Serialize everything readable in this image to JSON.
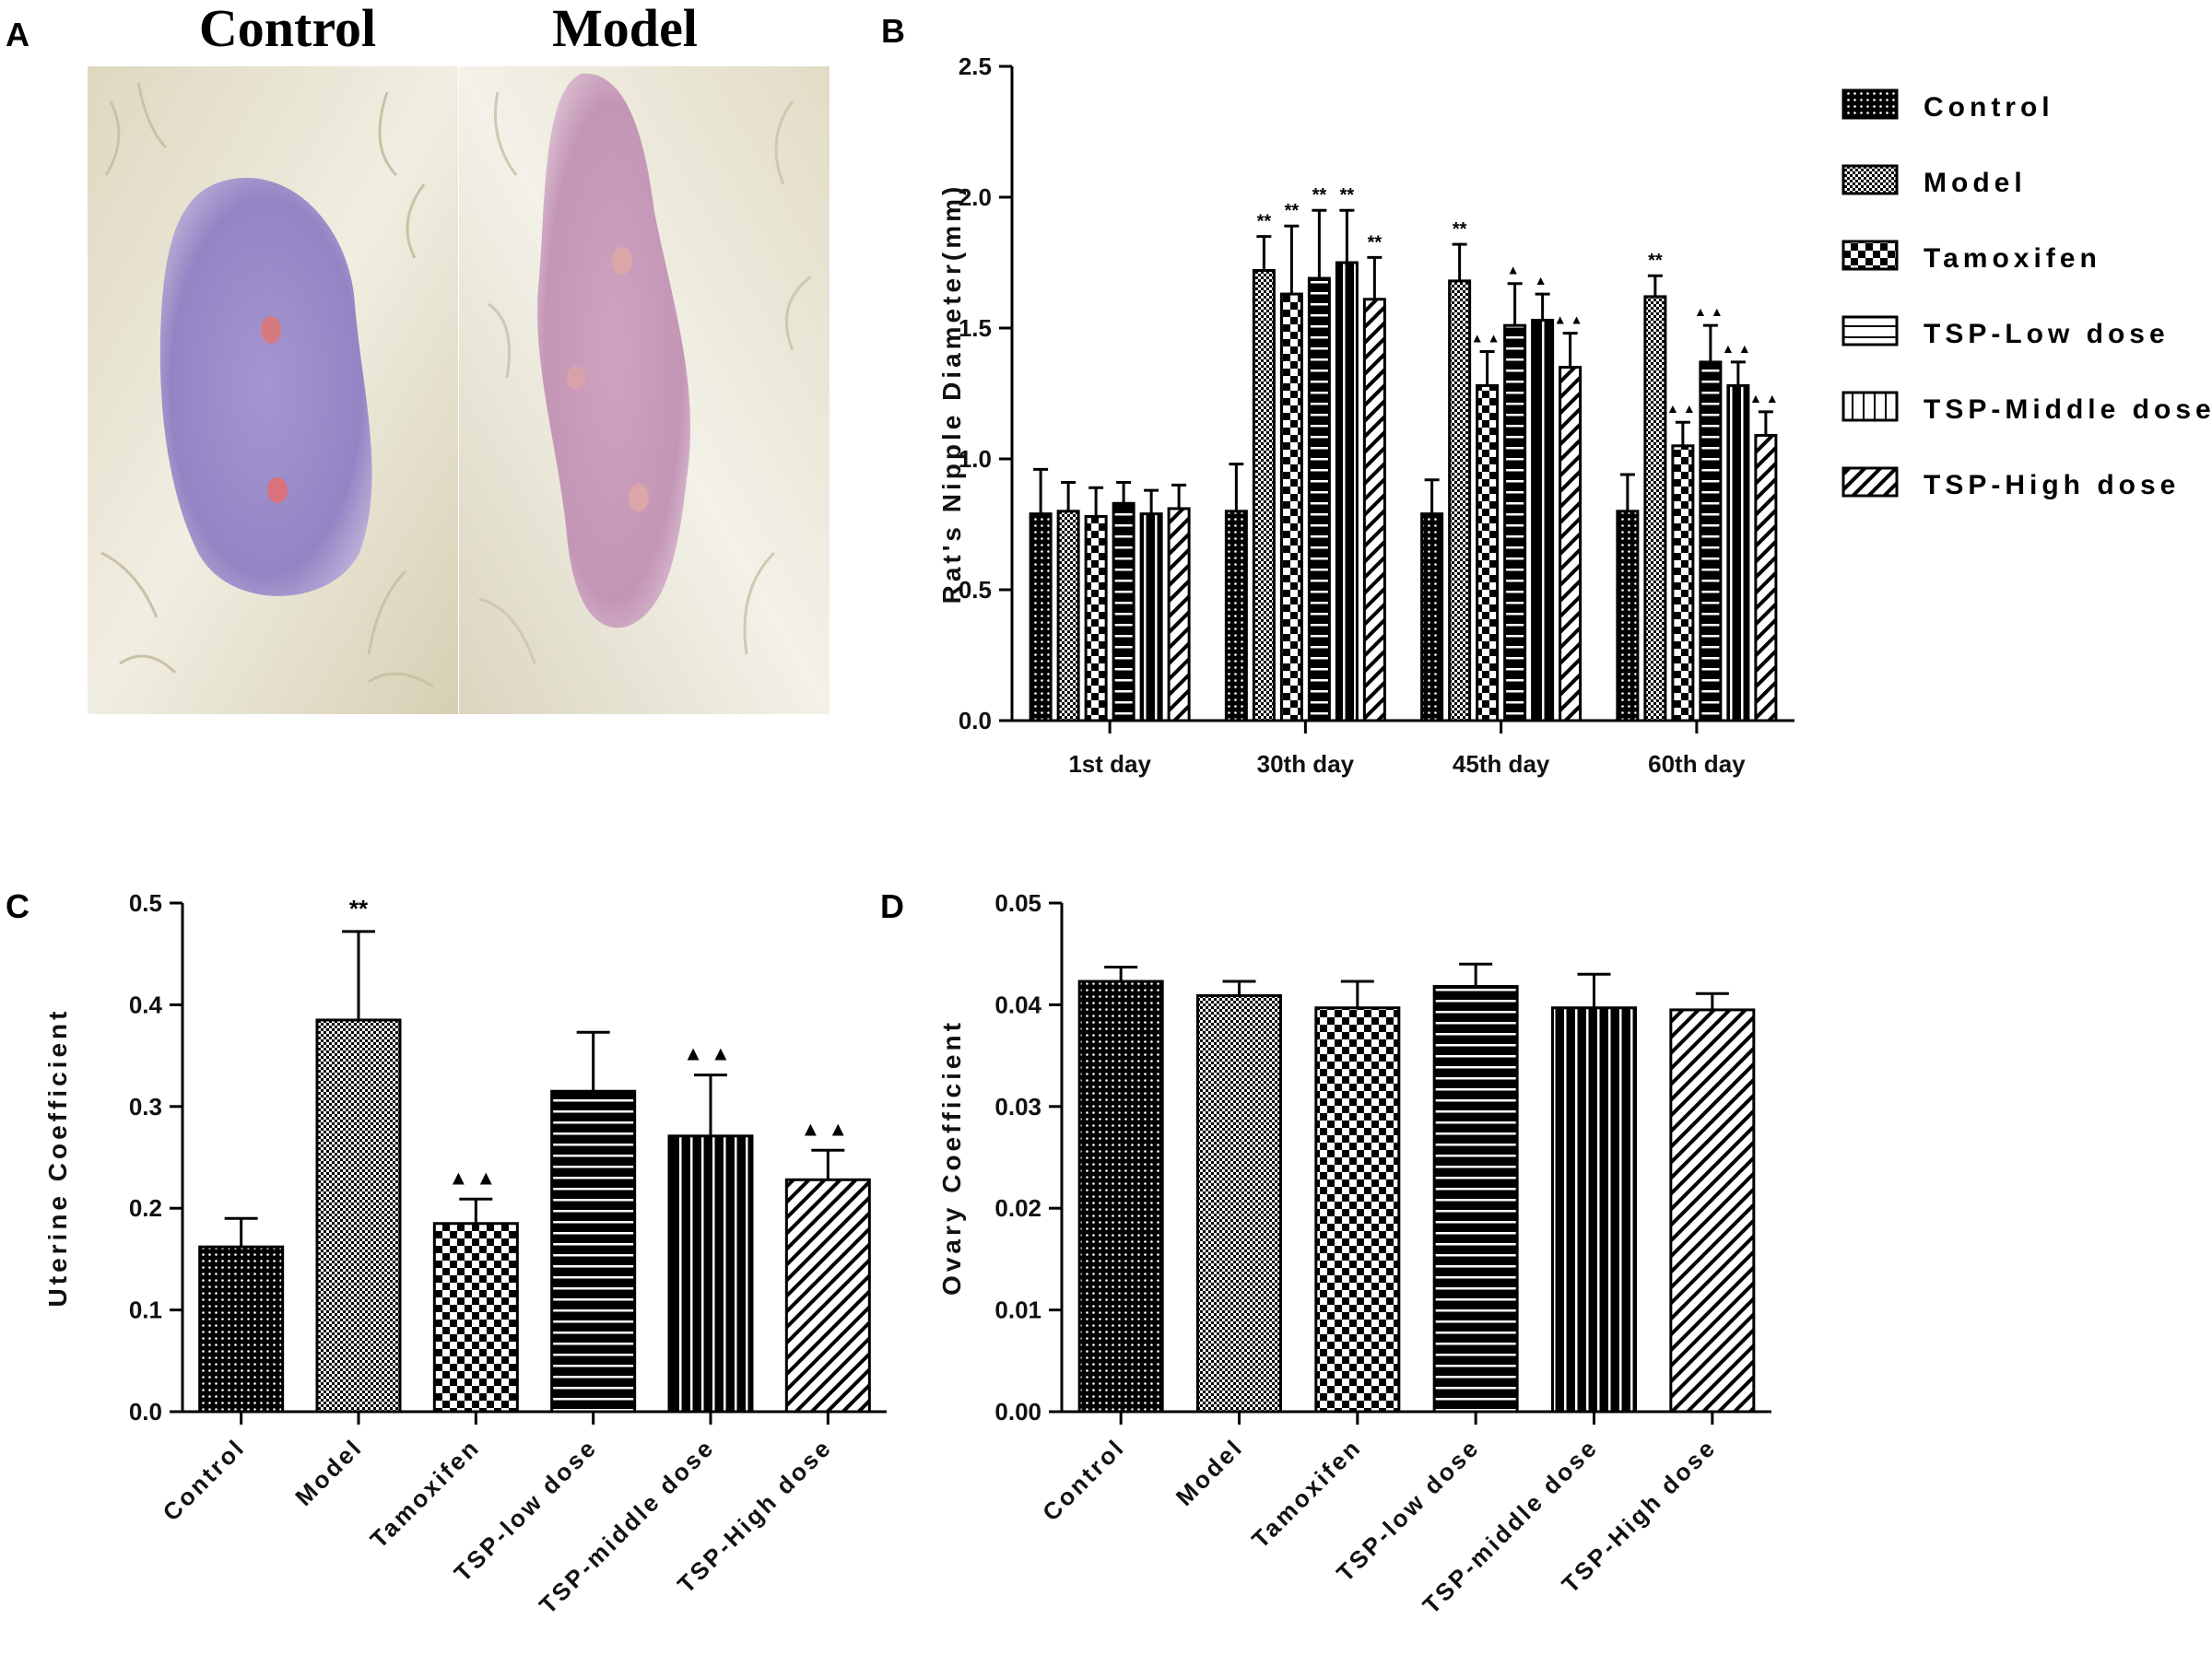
{
  "panels": {
    "A": {
      "letter": "A",
      "photo_labels": [
        "Control",
        "Model"
      ]
    },
    "B": {
      "letter": "B"
    },
    "C": {
      "letter": "C"
    },
    "D": {
      "letter": "D"
    }
  },
  "colors": {
    "bar_stroke": "#000000",
    "background": "#ffffff",
    "photo_skin_control": "#9b88c8",
    "photo_skin_model": "#c898b8",
    "photo_fur": "#e8e4d4"
  },
  "chart_data": [
    {
      "id": "B",
      "type": "bar",
      "title": "",
      "xlabel": "",
      "ylabel": "Rat's Nipple Diameter(mm)",
      "ylim": [
        0,
        2.5
      ],
      "yticks": [
        "0.0",
        "0.5",
        "1.0",
        "1.5",
        "2.0",
        "2.5"
      ],
      "categories": [
        "1st day",
        "30th day",
        "45th day",
        "60th day"
      ],
      "series": [
        {
          "name": "Control",
          "pattern": "dots",
          "values": [
            0.79,
            0.8,
            0.79,
            0.8
          ],
          "errors": [
            0.17,
            0.18,
            0.13,
            0.14
          ],
          "marks": [
            "",
            "",
            "",
            ""
          ]
        },
        {
          "name": "Model",
          "pattern": "fine-check",
          "values": [
            0.8,
            1.72,
            1.68,
            1.62
          ],
          "errors": [
            0.11,
            0.13,
            0.14,
            0.08
          ],
          "marks": [
            "",
            "**",
            "**",
            "**"
          ]
        },
        {
          "name": "Tamoxifen",
          "pattern": "check",
          "values": [
            0.78,
            1.63,
            1.28,
            1.05
          ],
          "errors": [
            0.11,
            0.26,
            0.13,
            0.09
          ],
          "marks": [
            "",
            "**",
            "▲▲",
            "▲▲"
          ]
        },
        {
          "name": "TSP-Low dose",
          "pattern": "hlines",
          "values": [
            0.83,
            1.69,
            1.51,
            1.37
          ],
          "errors": [
            0.08,
            0.26,
            0.16,
            0.14
          ],
          "marks": [
            "",
            "**",
            "▲",
            "▲▲"
          ]
        },
        {
          "name": "TSP-Middle dose",
          "pattern": "vlines",
          "values": [
            0.79,
            1.75,
            1.53,
            1.28
          ],
          "errors": [
            0.09,
            0.2,
            0.1,
            0.09
          ],
          "marks": [
            "",
            "**",
            "▲",
            "▲▲"
          ]
        },
        {
          "name": "TSP-High dose",
          "pattern": "diag",
          "values": [
            0.81,
            1.61,
            1.35,
            1.09
          ],
          "errors": [
            0.09,
            0.16,
            0.13,
            0.09
          ],
          "marks": [
            "",
            "**",
            "▲▲",
            "▲▲"
          ]
        }
      ]
    },
    {
      "id": "C",
      "type": "bar",
      "title": "",
      "xlabel": "",
      "ylabel": "Uterine Coefficient",
      "ylim": [
        0,
        0.5
      ],
      "yticks": [
        "0.0",
        "0.1",
        "0.2",
        "0.3",
        "0.4",
        "0.5"
      ],
      "categories": [
        "Control",
        "Model",
        "Tamoxifen",
        "TSP-low dose",
        "TSP-middle dose",
        "TSP-High dose"
      ],
      "patterns": [
        "dots",
        "fine-check",
        "check",
        "hlines",
        "vlines",
        "diag"
      ],
      "values": [
        0.162,
        0.385,
        0.185,
        0.315,
        0.271,
        0.228
      ],
      "errors": [
        0.028,
        0.087,
        0.024,
        0.058,
        0.06,
        0.029
      ],
      "marks": [
        "",
        "**",
        "▲▲",
        "",
        "▲▲",
        "▲▲"
      ]
    },
    {
      "id": "D",
      "type": "bar",
      "title": "",
      "xlabel": "",
      "ylabel": "Ovary Coefficient",
      "ylim": [
        0,
        0.05
      ],
      "yticks": [
        "0.00",
        "0.01",
        "0.02",
        "0.03",
        "0.04",
        "0.05"
      ],
      "categories": [
        "Control",
        "Model",
        "Tamoxifen",
        "TSP-low dose",
        "TSP-middle dose",
        "TSP-High dose"
      ],
      "patterns": [
        "dots",
        "fine-check",
        "check",
        "hlines",
        "vlines",
        "diag"
      ],
      "values": [
        0.0423,
        0.0409,
        0.0397,
        0.0418,
        0.0397,
        0.0395
      ],
      "errors": [
        0.0014,
        0.0014,
        0.0026,
        0.0022,
        0.0033,
        0.0016
      ],
      "marks": [
        "",
        "",
        "",
        "",
        "",
        ""
      ]
    }
  ]
}
